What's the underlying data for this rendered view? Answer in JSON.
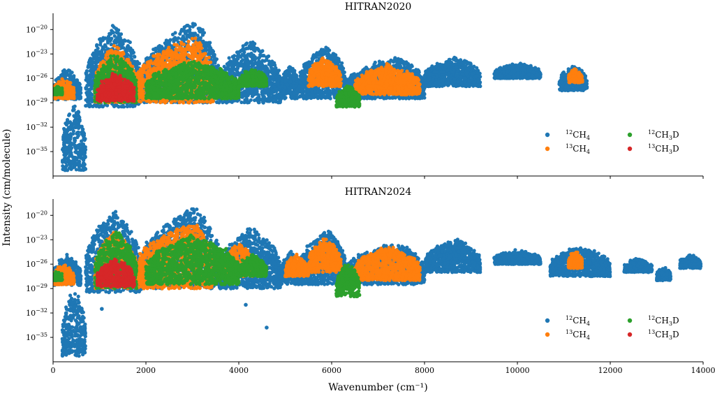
{
  "chart_data": {
    "type": "scatter",
    "xlabel": "Wavenumber (cm⁻¹)",
    "ylabel": "Intensity (cm/molecule)",
    "xlim": [
      0,
      14000
    ],
    "xticks": [
      0,
      2000,
      4000,
      6000,
      8000,
      10000,
      12000,
      14000
    ],
    "ylim_log10": [
      -38,
      -18
    ],
    "yticks_log10": [
      -20,
      -23,
      -26,
      -29,
      -32,
      -35
    ],
    "colors": {
      "12CH4": "#1f77b4",
      "13CH4": "#ff7f0e",
      "12CH3D": "#2ca02c",
      "13CH3D": "#d62728"
    },
    "legend": [
      {
        "key": "12CH4",
        "iso": "12",
        "formula": "CH",
        "sub": "4",
        "tail": ""
      },
      {
        "key": "13CH4",
        "iso": "13",
        "formula": "CH",
        "sub": "4",
        "tail": ""
      },
      {
        "key": "12CH3D",
        "iso": "12",
        "formula": "CH",
        "sub": "3",
        "tail": "D"
      },
      {
        "key": "13CH3D",
        "iso": "13",
        "formula": "CH",
        "sub": "3",
        "tail": "D"
      }
    ],
    "panels": [
      {
        "title": "HITRAN2020",
        "series": [
          {
            "name": "12CH4",
            "bands": [
              {
                "x": [
                  0,
                  600
                ],
                "lo": -28.6,
                "hi": -25.0
              },
              {
                "x": [
                  200,
                  700
                ],
                "lo": -37.3,
                "hi": -29.0
              },
              {
                "x": [
                  700,
                  1900
                ],
                "lo": -29.5,
                "hi": -19.5,
                "peak": 1310
              },
              {
                "x": [
                  1900,
                  3600
                ],
                "lo": -29.0,
                "hi": -19.2,
                "peak": 3050
              },
              {
                "x": [
                  3600,
                  4900
                ],
                "lo": -29.0,
                "hi": -21.5,
                "peak": 4250
              },
              {
                "x": [
                  4900,
                  5300
                ],
                "lo": -28.5,
                "hi": -24.5
              },
              {
                "x": [
                  5300,
                  6300
                ],
                "lo": -28.5,
                "hi": -22.0,
                "peak": 5950
              },
              {
                "x": [
                  6300,
                  8000
                ],
                "lo": -28.5,
                "hi": -23.5,
                "peak": 7400
              },
              {
                "x": [
                  8000,
                  9200
                ],
                "lo": -27.0,
                "hi": -23.5,
                "peak": 8700
              },
              {
                "x": [
                  9500,
                  10500
                ],
                "lo": -26.0,
                "hi": -24.3
              },
              {
                "x": [
                  10900,
                  11500
                ],
                "lo": -27.5,
                "hi": -24.5
              }
            ]
          },
          {
            "name": "13CH4",
            "bands": [
              {
                "x": [
                  0,
                  450
                ],
                "lo": -28.5,
                "hi": -26.2
              },
              {
                "x": [
                  900,
                  1800
                ],
                "lo": -29.0,
                "hi": -22.0,
                "peak": 1310
              },
              {
                "x": [
                  1800,
                  3450
                ],
                "lo": -29.0,
                "hi": -21.0,
                "peak": 3050
              },
              {
                "x": [
                  5500,
                  6200
                ],
                "lo": -27.0,
                "hi": -23.5
              },
              {
                "x": [
                  6500,
                  7900
                ],
                "lo": -28.0,
                "hi": -24.5
              },
              {
                "x": [
                  11100,
                  11400
                ],
                "lo": -26.5,
                "hi": -25.0
              }
            ]
          },
          {
            "name": "12CH3D",
            "bands": [
              {
                "x": [
                  0,
                  200
                ],
                "lo": -28.0,
                "hi": -27.0
              },
              {
                "x": [
                  900,
                  1800
                ],
                "lo": -29.0,
                "hi": -23.0
              },
              {
                "x": [
                  2000,
                  4000
                ],
                "lo": -28.5,
                "hi": -24.0
              },
              {
                "x": [
                  4000,
                  4600
                ],
                "lo": -27.0,
                "hi": -25.0
              },
              {
                "x": [
                  6100,
                  6600
                ],
                "lo": -29.5,
                "hi": -27.0
              }
            ]
          },
          {
            "name": "13CH3D",
            "bands": [
              {
                "x": [
                  950,
                  1750
                ],
                "lo": -28.8,
                "hi": -25.5
              }
            ]
          }
        ]
      },
      {
        "title": "HITRAN2024",
        "series": [
          {
            "name": "12CH4",
            "bands": [
              {
                "x": [
                  0,
                  600
                ],
                "lo": -28.6,
                "hi": -25.0
              },
              {
                "x": [
                  200,
                  700
                ],
                "lo": -37.3,
                "hi": -29.0
              },
              {
                "x": [
                  700,
                  1900
                ],
                "lo": -29.5,
                "hi": -19.5,
                "peak": 1310
              },
              {
                "x": [
                  1900,
                  3600
                ],
                "lo": -29.0,
                "hi": -19.2,
                "peak": 3050
              },
              {
                "x": [
                  3600,
                  4900
                ],
                "lo": -29.0,
                "hi": -21.5,
                "peak": 4250
              },
              {
                "x": [
                  4900,
                  5300
                ],
                "lo": -28.5,
                "hi": -24.5
              },
              {
                "x": [
                  5300,
                  6300
                ],
                "lo": -28.5,
                "hi": -22.0,
                "peak": 5950
              },
              {
                "x": [
                  6300,
                  8000
                ],
                "lo": -28.5,
                "hi": -23.5,
                "peak": 7400
              },
              {
                "x": [
                  8000,
                  9200
                ],
                "lo": -27.0,
                "hi": -23.0,
                "peak": 8700
              },
              {
                "x": [
                  9500,
                  10500
                ],
                "lo": -26.0,
                "hi": -24.5
              },
              {
                "x": [
                  10700,
                  12000
                ],
                "lo": -27.5,
                "hi": -24.0
              },
              {
                "x": [
                  12300,
                  12900
                ],
                "lo": -27.0,
                "hi": -25.5
              },
              {
                "x": [
                  13000,
                  13300
                ],
                "lo": -28.0,
                "hi": -26.5
              },
              {
                "x": [
                  13500,
                  13950
                ],
                "lo": -26.5,
                "hi": -25.0
              }
            ]
          },
          {
            "name": "13CH4",
            "bands": [
              {
                "x": [
                  0,
                  450
                ],
                "lo": -28.5,
                "hi": -26.2
              },
              {
                "x": [
                  900,
                  1800
                ],
                "lo": -29.0,
                "hi": -22.0,
                "peak": 1310
              },
              {
                "x": [
                  1800,
                  3450
                ],
                "lo": -29.0,
                "hi": -21.0,
                "peak": 3050
              },
              {
                "x": [
                  3700,
                  4300
                ],
                "lo": -27.5,
                "hi": -23.5
              },
              {
                "x": [
                  5000,
                  5500
                ],
                "lo": -27.5,
                "hi": -25.0
              },
              {
                "x": [
                  5500,
                  6200
                ],
                "lo": -27.0,
                "hi": -23.0
              },
              {
                "x": [
                  6500,
                  7900
                ],
                "lo": -28.0,
                "hi": -24.0
              },
              {
                "x": [
                  11100,
                  11400
                ],
                "lo": -26.5,
                "hi": -24.5
              }
            ]
          },
          {
            "name": "12CH3D",
            "bands": [
              {
                "x": [
                  0,
                  200
                ],
                "lo": -28.0,
                "hi": -27.0
              },
              {
                "x": [
                  900,
                  1800
                ],
                "lo": -29.0,
                "hi": -22.0
              },
              {
                "x": [
                  2000,
                  4000
                ],
                "lo": -28.5,
                "hi": -22.5
              },
              {
                "x": [
                  4000,
                  4600
                ],
                "lo": -27.5,
                "hi": -25.0
              },
              {
                "x": [
                  6100,
                  6600
                ],
                "lo": -30.0,
                "hi": -26.0
              }
            ]
          },
          {
            "name": "13CH3D",
            "bands": [
              {
                "x": [
                  950,
                  1750
                ],
                "lo": -28.8,
                "hi": -25.5
              }
            ]
          }
        ],
        "outliers": [
          {
            "series": "12CH4",
            "x": 1050,
            "y": -31.5
          },
          {
            "series": "12CH4",
            "x": 4150,
            "y": -31.0
          },
          {
            "series": "12CH4",
            "x": 4600,
            "y": -33.8
          }
        ]
      }
    ]
  }
}
